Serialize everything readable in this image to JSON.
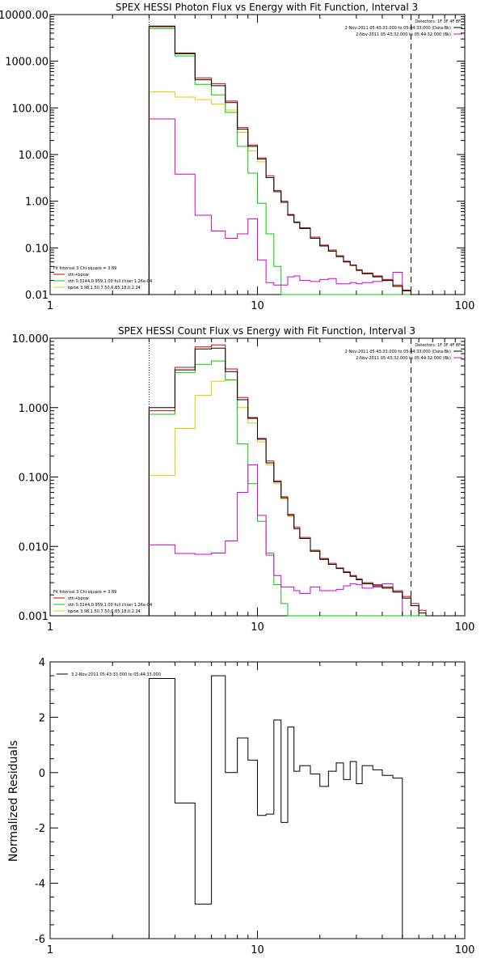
{
  "palette": {
    "background": "#ffffff",
    "axes": "#000000",
    "data": "#000000",
    "total": "#d40000",
    "vth": "#00cc00",
    "bpow": "#e6c800",
    "background_spectrum": "#d400d4"
  },
  "energy_edges": [
    3,
    4,
    5,
    6,
    7,
    8,
    9,
    10,
    11,
    12,
    13,
    14,
    15,
    16,
    18,
    20,
    22,
    24,
    26,
    28,
    30,
    32,
    36,
    40,
    45,
    50,
    55,
    60,
    65,
    70,
    75
  ],
  "chart_data": [
    {
      "id": "photon",
      "type": "line",
      "step": true,
      "title": "SPEX HESSI Photon Flux vs Energy with Fit Function, Interval 3",
      "xlabel": "",
      "ylabel": "",
      "xscale": "log",
      "yscale": "log",
      "xlim": [
        1,
        100
      ],
      "ylim": [
        0.01,
        10000
      ],
      "x_ticks": [
        "1",
        "10",
        "100"
      ],
      "y_ticks": [
        "0.01",
        "0.10",
        "1.00",
        "10.00",
        "100.00",
        "1000.00",
        "10000.00"
      ],
      "detectors_label": "Detectors: 1F 3F 4F 8F",
      "header_lines": [
        "2-Nov-2011 05:43:33.000 to 05:44:33.000 (Data-Bk)",
        "2-Nov-2011 05:43:32.000 to 05:44:32.000 (Bk)"
      ],
      "fit_text": "Fit Interval 3   Chi-square = 3.89",
      "legend": [
        "vth+bpow",
        "vth 0.0144,0.959,1.00  full chian 1.26e-04",
        "bpow 3.98,1.50,7.50,6.85,18.0,2.24"
      ],
      "vline_dotted": 3,
      "vline_dashed": 55,
      "series": [
        {
          "name": "2-Nov-2011 05:43:33.000 to 05:44:33.000 (Data-Bk)",
          "role": "data",
          "values": [
            5500,
            1450,
            400,
            300,
            130,
            35,
            15,
            8,
            3.2,
            1.6,
            0.95,
            0.5,
            0.35,
            0.26,
            0.16,
            0.11,
            0.085,
            0.065,
            0.05,
            0.042,
            0.033,
            0.028,
            0.024,
            0.02,
            0.015,
            0.012,
            0.009,
            0.009,
            0.009,
            0.009
          ]
        },
        {
          "name": "vth+bpow",
          "role": "total",
          "values": [
            5700,
            1500,
            440,
            330,
            140,
            38,
            16,
            8.5,
            3.5,
            1.7,
            1.0,
            0.52,
            0.36,
            0.27,
            0.17,
            0.115,
            0.09,
            0.068,
            0.052,
            0.043,
            0.034,
            0.029,
            0.025,
            0.021,
            0.016,
            0.0125,
            0.009,
            0.009,
            0.009,
            0.009
          ]
        },
        {
          "name": "vth 0.0144,0.959,1.00  full chian 1.26e-04",
          "role": "vth",
          "values": [
            5000,
            1300,
            320,
            190,
            80,
            15,
            4,
            0.9,
            0.2,
            0.04,
            0.009,
            0.009,
            0.009,
            0.009,
            0.009,
            0.009,
            0.009,
            0.009,
            0.009,
            0.009,
            0.009,
            0.009,
            0.009,
            0.009,
            0.009,
            0.009,
            0.009,
            0.009,
            0.009,
            0.009
          ]
        },
        {
          "name": "bpow 3.98,1.50,7.50,6.85,18.0,2.24",
          "role": "bpow",
          "values": [
            220,
            170,
            150,
            120,
            90,
            30,
            12,
            7,
            3.2,
            1.6,
            0.95,
            0.5,
            0.35,
            0.26,
            0.16,
            0.11,
            0.085,
            0.065,
            0.05,
            0.042,
            0.033,
            0.028,
            0.024,
            0.02,
            0.015,
            0.012,
            0.009,
            0.009,
            0.009,
            0.009
          ]
        },
        {
          "name": "2-Nov-2011 05:43:32.000 to 05:44:32.000 (Bk)",
          "role": "background",
          "values": [
            58,
            3.8,
            0.5,
            0.23,
            0.16,
            0.2,
            0.42,
            0.055,
            0.018,
            0.016,
            0.016,
            0.024,
            0.025,
            0.02,
            0.019,
            0.021,
            0.022,
            0.017,
            0.017,
            0.018,
            0.017,
            0.018,
            0.019,
            0.02,
            0.03
          ]
        }
      ]
    },
    {
      "id": "count",
      "type": "line",
      "step": true,
      "title": "SPEX HESSI Count Flux vs Energy with Fit Function, Interval 3",
      "xlabel": "",
      "ylabel": "",
      "xscale": "log",
      "yscale": "log",
      "xlim": [
        1,
        100
      ],
      "ylim": [
        0.001,
        10
      ],
      "x_ticks": [
        "1",
        "10",
        "100"
      ],
      "y_ticks": [
        "0.001",
        "0.010",
        "0.100",
        "1.000",
        "10.000"
      ],
      "detectors_label": "Detectors: 1F 3F 4F 8F",
      "header_lines": [
        "2-Nov-2011 05:43:33.000 to 05:44:33.000 (Data-Bk)",
        "2-Nov-2011 05:43:32.000 to 05:44:32.000 (Bk)"
      ],
      "fit_text": "Fit Interval 3   Chi-square = 3.89",
      "legend": [
        "vth+bpow",
        "vth 0.0144,0.959,1.00  full chian 1.26e-04",
        "bpow 3.98,1.50,7.50,6.85,18.0,2.24"
      ],
      "vline_dotted": 3,
      "vline_dashed": 55,
      "series": [
        {
          "name": "2-Nov-2011 05:43:33.000 to 05:44:33.000 (Data-Bk)",
          "role": "data",
          "values": [
            1.0,
            3.5,
            7.0,
            7.2,
            3.3,
            1.3,
            0.7,
            0.35,
            0.16,
            0.085,
            0.05,
            0.028,
            0.018,
            0.013,
            0.0085,
            0.0065,
            0.0055,
            0.0048,
            0.0042,
            0.0037,
            0.0033,
            0.0029,
            0.0027,
            0.0025,
            0.0022,
            0.0018,
            0.0014,
            0.0011,
            0.0009,
            0.0009
          ]
        },
        {
          "name": "vth+bpow",
          "role": "total",
          "values": [
            0.9,
            3.8,
            7.5,
            8.0,
            3.6,
            1.4,
            0.72,
            0.36,
            0.17,
            0.088,
            0.052,
            0.029,
            0.019,
            0.0135,
            0.0088,
            0.0067,
            0.0057,
            0.0049,
            0.0043,
            0.0038,
            0.0034,
            0.003,
            0.0028,
            0.0026,
            0.0023,
            0.0019,
            0.0015,
            0.0012,
            0.0009,
            0.0009
          ]
        },
        {
          "name": "vth 0.0144,0.959,1.00  full chian 1.26e-04",
          "role": "vth",
          "values": [
            0.8,
            3.2,
            4.2,
            4.7,
            2.5,
            0.3,
            0.08,
            0.023,
            0.008,
            0.0028,
            0.0015,
            0.0009,
            0.0009,
            0.0009,
            0.0009,
            0.0009,
            0.0009,
            0.0009,
            0.0009,
            0.0009,
            0.0009,
            0.0009,
            0.0009,
            0.0009,
            0.0009,
            0.0009,
            0.0009,
            0.0009,
            0.0009,
            0.0009
          ]
        },
        {
          "name": "bpow 3.98,1.50,7.50,6.85,18.0,2.24",
          "role": "bpow",
          "values": [
            0.105,
            0.5,
            1.5,
            2.4,
            2.5,
            1.0,
            0.6,
            0.32,
            0.15,
            0.08,
            0.048,
            0.027,
            0.018,
            0.013,
            0.0085,
            0.0065,
            0.0055,
            0.0048,
            0.0042,
            0.0037,
            0.0033,
            0.0029,
            0.0027,
            0.0025,
            0.0022,
            0.0018,
            0.0014,
            0.0011,
            0.0009,
            0.0009
          ]
        },
        {
          "name": "2-Nov-2011 05:43:32.000 to 05:44:32.000 (Bk)",
          "role": "background",
          "values": [
            0.0105,
            0.0079,
            0.0077,
            0.008,
            0.012,
            0.06,
            0.15,
            0.028,
            0.0075,
            0.0038,
            0.0026,
            0.0026,
            0.0023,
            0.0021,
            0.0026,
            0.0023,
            0.0023,
            0.0024,
            0.0027,
            0.0029,
            0.0028,
            0.0025,
            0.0026,
            0.0029,
            0.0022
          ]
        }
      ]
    },
    {
      "id": "residuals",
      "type": "line",
      "step": true,
      "title": "",
      "xlabel": "",
      "ylabel": "Normalized Residuals",
      "xscale": "log",
      "yscale": "linear",
      "xlim": [
        1,
        100
      ],
      "ylim": [
        -6,
        4
      ],
      "x_ticks": [
        "1",
        "10",
        "100"
      ],
      "y_ticks": [
        "-6",
        "-4",
        "-2",
        "0",
        "2",
        "4"
      ],
      "legend_text": "3  2-Nov-2011 05:43:33.000 to 05:44:33.000",
      "series": [
        {
          "name": "3  2-Nov-2011 05:43:33.000 to 05:44:33.000",
          "role": "data",
          "values": [
            3.4,
            -1.1,
            -4.75,
            3.5,
            0.0,
            1.25,
            0.45,
            -1.55,
            -1.5,
            1.9,
            -1.8,
            1.65,
            0.05,
            0.25,
            -0.05,
            -0.5,
            0.05,
            0.35,
            -0.25,
            0.4,
            -0.4,
            0.25,
            0.1,
            -0.1,
            -0.2
          ]
        }
      ]
    }
  ]
}
